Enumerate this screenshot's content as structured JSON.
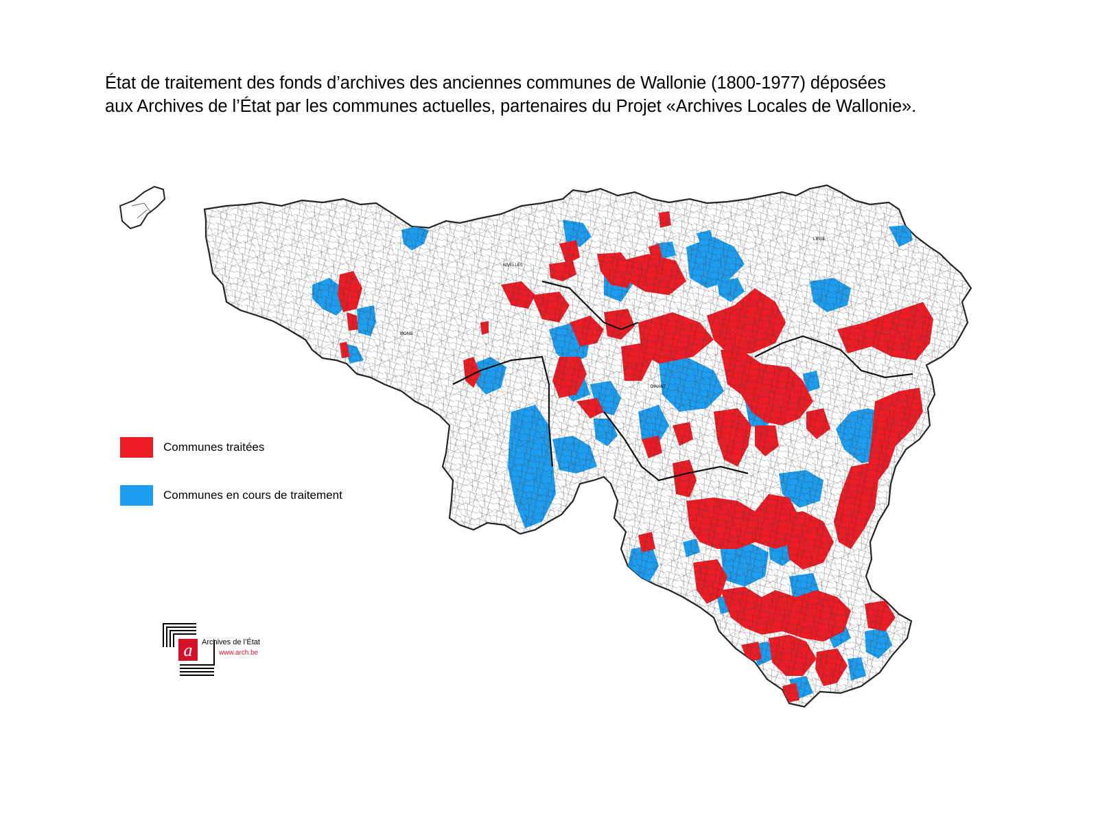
{
  "title": {
    "line1": "État de traitement des fonds d’archives des anciennes communes de Wallonie (1800-1977) déposées",
    "line2": "aux Archives de l’État par les communes actuelles, partenaires du Projet «Archives Locales de Wallonie»."
  },
  "legend": [
    {
      "label": "Communes traitées",
      "color": "#ee1c25"
    },
    {
      "label": "Communes en cours de traitement",
      "color": "#1e9ef0"
    }
  ],
  "map": {
    "region": "Wallonie",
    "city_labels": [
      "MONS",
      "LIEGE",
      "DINANT",
      "NIVELLES"
    ],
    "colors": {
      "treated": "#ee1c25",
      "in_progress": "#1e9ef0",
      "untreated": "#ffffff",
      "border": "#222222"
    }
  },
  "logo": {
    "letter": "a",
    "name": "Archives de l’État",
    "url": "www.arch.be",
    "accent": "#d4132b"
  }
}
